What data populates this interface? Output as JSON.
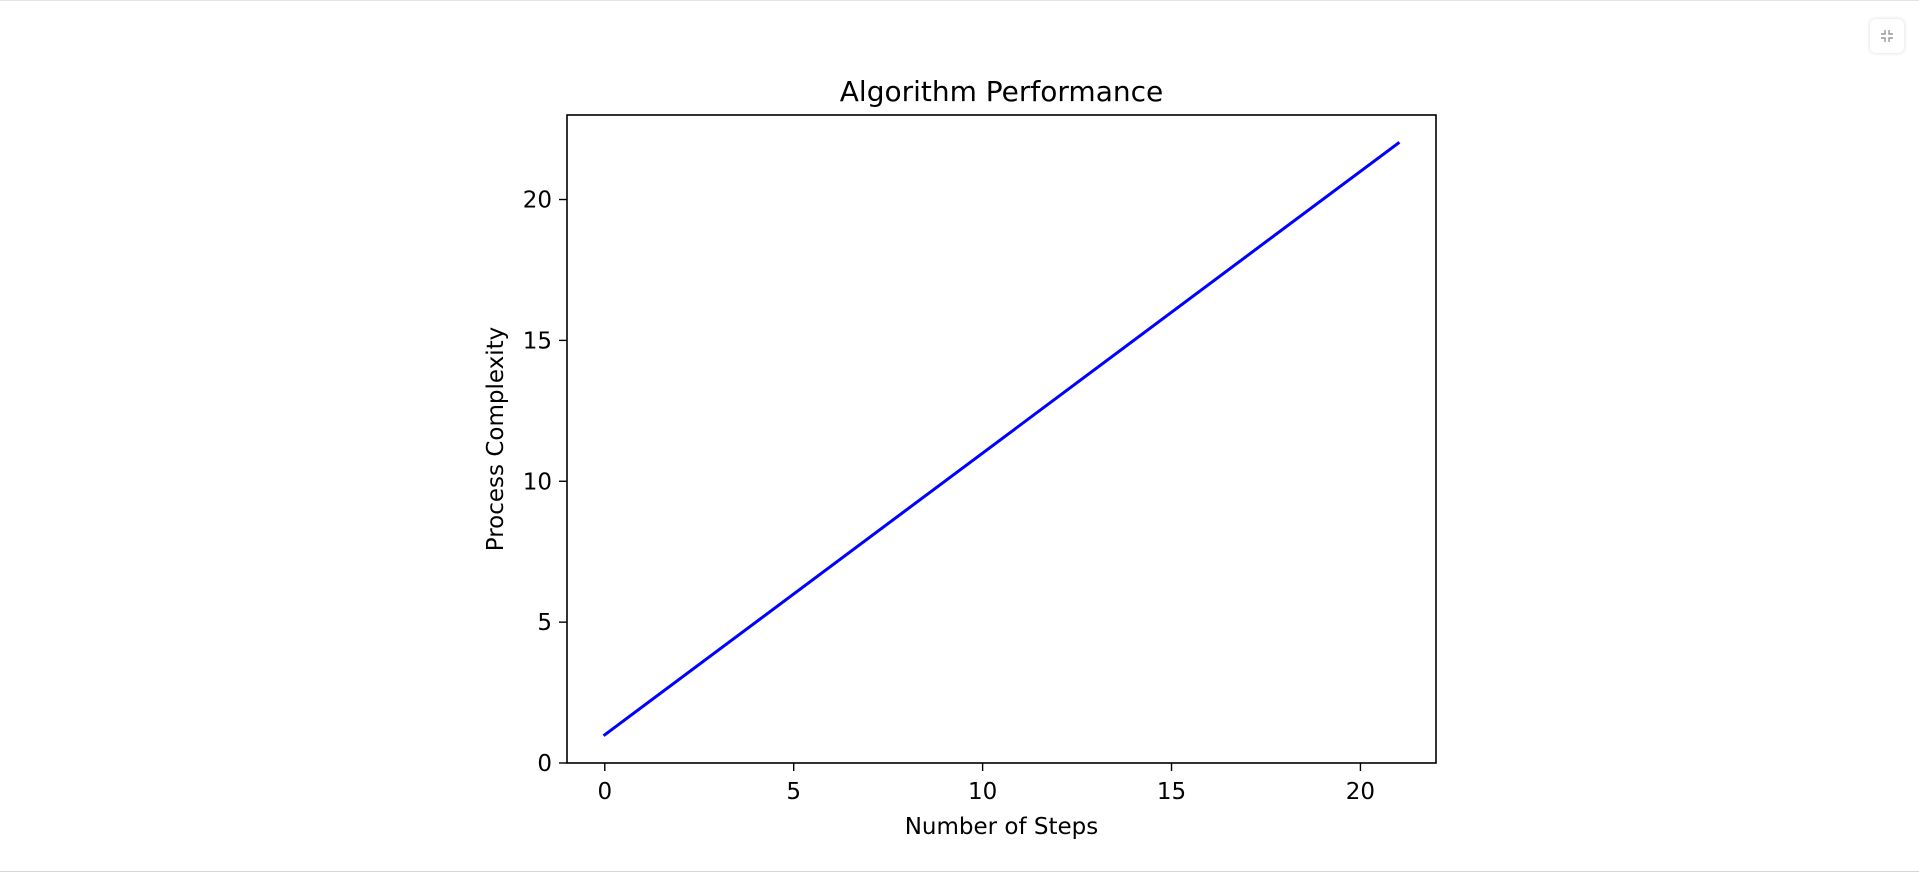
{
  "toolbar": {
    "collapse_icon": "collapse-icon"
  },
  "chart_data": {
    "type": "line",
    "title": "Algorithm Performance",
    "xlabel": "Number of Steps",
    "ylabel": "Process Complexity",
    "xlim": [
      -1,
      22
    ],
    "ylim": [
      0,
      23
    ],
    "xticks": [
      0,
      5,
      10,
      15,
      20
    ],
    "yticks": [
      0,
      5,
      10,
      15,
      20
    ],
    "grid": false,
    "series": [
      {
        "color": "#0000ff",
        "x": [
          0,
          21
        ],
        "y": [
          1,
          22
        ]
      }
    ]
  }
}
